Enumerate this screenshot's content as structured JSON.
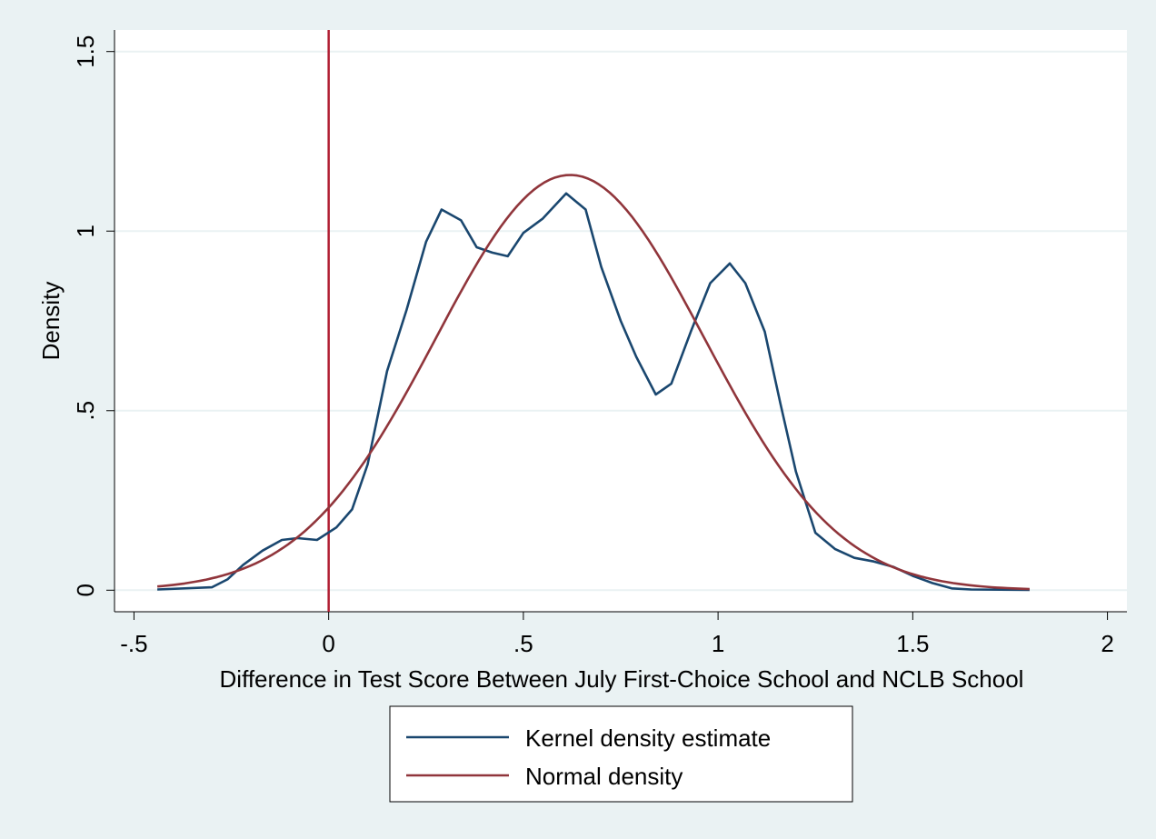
{
  "chart_data": {
    "type": "line",
    "title": "",
    "xlabel": "Difference in Test Score Between July First-Choice School and NCLB School",
    "ylabel": "Density",
    "xlim": [
      -0.55,
      2.05
    ],
    "ylim": [
      -0.06,
      1.56
    ],
    "xticks": [
      -0.5,
      0,
      0.5,
      1,
      1.5,
      2
    ],
    "xtick_labels": [
      "-.5",
      "0",
      ".5",
      "1",
      "1.5",
      "2"
    ],
    "yticks": [
      0,
      0.5,
      1,
      1.5
    ],
    "ytick_labels": [
      "0",
      ".5",
      "1",
      "1.5"
    ],
    "grid": true,
    "legend_position": "bottom",
    "reference_line": {
      "x": 0,
      "color": "#b01e32"
    },
    "series": [
      {
        "name": "Kernel density estimate",
        "color": "#1a476f",
        "points": [
          [
            -0.44,
            0.002
          ],
          [
            -0.3,
            0.008
          ],
          [
            -0.26,
            0.03
          ],
          [
            -0.22,
            0.07
          ],
          [
            -0.17,
            0.11
          ],
          [
            -0.12,
            0.14
          ],
          [
            -0.08,
            0.145
          ],
          [
            -0.03,
            0.14
          ],
          [
            0.02,
            0.175
          ],
          [
            0.06,
            0.225
          ],
          [
            0.1,
            0.35
          ],
          [
            0.15,
            0.61
          ],
          [
            0.2,
            0.78
          ],
          [
            0.25,
            0.97
          ],
          [
            0.29,
            1.06
          ],
          [
            0.34,
            1.03
          ],
          [
            0.38,
            0.955
          ],
          [
            0.42,
            0.94
          ],
          [
            0.46,
            0.93
          ],
          [
            0.5,
            0.995
          ],
          [
            0.55,
            1.035
          ],
          [
            0.61,
            1.105
          ],
          [
            0.66,
            1.06
          ],
          [
            0.7,
            0.9
          ],
          [
            0.75,
            0.75
          ],
          [
            0.79,
            0.65
          ],
          [
            0.84,
            0.545
          ],
          [
            0.88,
            0.575
          ],
          [
            0.93,
            0.72
          ],
          [
            0.98,
            0.855
          ],
          [
            1.03,
            0.91
          ],
          [
            1.07,
            0.855
          ],
          [
            1.12,
            0.72
          ],
          [
            1.16,
            0.52
          ],
          [
            1.2,
            0.33
          ],
          [
            1.25,
            0.16
          ],
          [
            1.3,
            0.115
          ],
          [
            1.35,
            0.09
          ],
          [
            1.4,
            0.08
          ],
          [
            1.45,
            0.065
          ],
          [
            1.5,
            0.04
          ],
          [
            1.55,
            0.02
          ],
          [
            1.6,
            0.005
          ],
          [
            1.65,
            0.002
          ],
          [
            1.8,
            0.001
          ]
        ]
      },
      {
        "name": "Normal density",
        "color": "#90353b",
        "mean": 0.62,
        "sd": 0.345,
        "range": [
          -0.44,
          1.8
        ]
      }
    ]
  }
}
